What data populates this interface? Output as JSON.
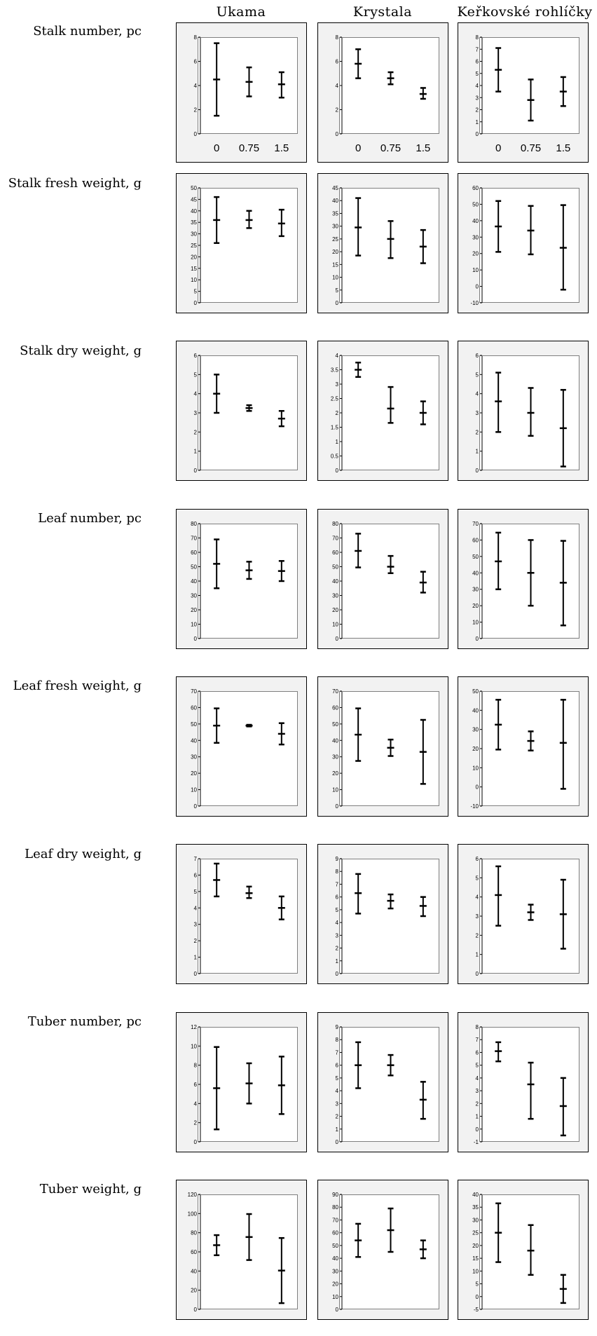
{
  "columns": [
    "Ukama",
    "Krystala",
    "Keřkovské rohlíčky"
  ],
  "rows": [
    "Stalk number, pc",
    "Stalk fresh weight, g",
    "Stalk dry weight, g",
    "Leaf number, pc",
    "Leaf fresh weight, g",
    "Leaf dry weight, g",
    "Tuber number, pc",
    "Tuber weight, g"
  ],
  "chart_data": [
    {
      "type": "errorbar",
      "row": 0,
      "col": 0,
      "ylim": [
        0,
        8
      ],
      "yticks": [
        0,
        2,
        4,
        6,
        8
      ],
      "categories": [
        "0",
        "0.75",
        "1.5"
      ],
      "mean": [
        4.5,
        4.3,
        4.1
      ],
      "low": [
        1.5,
        3.1,
        3.0
      ],
      "high": [
        7.5,
        5.5,
        5.1
      ]
    },
    {
      "type": "errorbar",
      "row": 0,
      "col": 1,
      "ylim": [
        0,
        8
      ],
      "yticks": [
        0,
        2,
        4,
        6,
        8
      ],
      "categories": [
        "0",
        "0.75",
        "1.5"
      ],
      "mean": [
        5.8,
        4.6,
        3.3
      ],
      "low": [
        4.6,
        4.1,
        2.9
      ],
      "high": [
        7.0,
        5.1,
        3.8
      ]
    },
    {
      "type": "errorbar",
      "row": 0,
      "col": 2,
      "ylim": [
        0,
        8
      ],
      "yticks": [
        0,
        1,
        2,
        3,
        4,
        5,
        6,
        7,
        8
      ],
      "categories": [
        "0",
        "0.75",
        "1.5"
      ],
      "mean": [
        5.3,
        2.8,
        3.5
      ],
      "low": [
        3.5,
        1.1,
        2.3
      ],
      "high": [
        7.1,
        4.5,
        4.7
      ]
    },
    {
      "type": "errorbar",
      "row": 1,
      "col": 0,
      "ylim": [
        0,
        50
      ],
      "yticks": [
        0,
        5,
        10,
        15,
        20,
        25,
        30,
        35,
        40,
        45,
        50
      ],
      "categories": [],
      "mean": [
        36,
        36,
        34.5
      ],
      "low": [
        26,
        32.5,
        29
      ],
      "high": [
        46,
        40,
        40.5
      ]
    },
    {
      "type": "errorbar",
      "row": 1,
      "col": 1,
      "ylim": [
        0,
        45
      ],
      "yticks": [
        0,
        5,
        10,
        15,
        20,
        25,
        30,
        35,
        40,
        45
      ],
      "categories": [],
      "mean": [
        29.5,
        25,
        22
      ],
      "low": [
        18.5,
        17.5,
        15.5
      ],
      "high": [
        41,
        32,
        28.5
      ]
    },
    {
      "type": "errorbar",
      "row": 1,
      "col": 2,
      "ylim": [
        -10,
        60
      ],
      "yticks": [
        -10,
        0,
        10,
        20,
        30,
        40,
        50,
        60
      ],
      "categories": [],
      "mean": [
        36.5,
        34,
        23.5
      ],
      "low": [
        21,
        19.5,
        -2
      ],
      "high": [
        52,
        49,
        49.5
      ]
    },
    {
      "type": "errorbar",
      "row": 2,
      "col": 0,
      "ylim": [
        0,
        6
      ],
      "yticks": [
        0,
        1,
        2,
        3,
        4,
        5,
        6
      ],
      "categories": [],
      "mean": [
        4.0,
        3.25,
        2.7
      ],
      "low": [
        3.0,
        3.1,
        2.3
      ],
      "high": [
        5.0,
        3.4,
        3.1
      ]
    },
    {
      "type": "errorbar",
      "row": 2,
      "col": 1,
      "ylim": [
        0,
        4
      ],
      "yticks": [
        0,
        0.5,
        1,
        1.5,
        2,
        2.5,
        3,
        3.5,
        4
      ],
      "categories": [],
      "mean": [
        3.5,
        2.15,
        2.0
      ],
      "low": [
        3.25,
        1.65,
        1.6
      ],
      "high": [
        3.75,
        2.9,
        2.4
      ]
    },
    {
      "type": "errorbar",
      "row": 2,
      "col": 2,
      "ylim": [
        0,
        6
      ],
      "yticks": [
        0,
        1,
        2,
        3,
        4,
        5,
        6
      ],
      "categories": [],
      "mean": [
        3.6,
        3.0,
        2.2
      ],
      "low": [
        2.0,
        1.8,
        0.2
      ],
      "high": [
        5.1,
        4.3,
        4.2
      ]
    },
    {
      "type": "errorbar",
      "row": 3,
      "col": 0,
      "ylim": [
        0,
        80
      ],
      "yticks": [
        0,
        10,
        20,
        30,
        40,
        50,
        60,
        70,
        80
      ],
      "categories": [],
      "mean": [
        52,
        47.5,
        47
      ],
      "low": [
        35,
        41.5,
        40
      ],
      "high": [
        69,
        53.5,
        54
      ]
    },
    {
      "type": "errorbar",
      "row": 3,
      "col": 1,
      "ylim": [
        0,
        80
      ],
      "yticks": [
        0,
        10,
        20,
        30,
        40,
        50,
        60,
        70,
        80
      ],
      "categories": [],
      "mean": [
        61,
        50,
        39
      ],
      "low": [
        49.5,
        45.5,
        32
      ],
      "high": [
        73,
        57.5,
        46.5
      ]
    },
    {
      "type": "errorbar",
      "row": 3,
      "col": 2,
      "ylim": [
        0,
        70
      ],
      "yticks": [
        0,
        10,
        20,
        30,
        40,
        50,
        60,
        70
      ],
      "categories": [],
      "mean": [
        47,
        40,
        34
      ],
      "low": [
        30,
        20,
        8
      ],
      "high": [
        64.5,
        60,
        59.5
      ]
    },
    {
      "type": "errorbar",
      "row": 4,
      "col": 0,
      "ylim": [
        0,
        70
      ],
      "yticks": [
        0,
        10,
        20,
        30,
        40,
        50,
        60,
        70
      ],
      "categories": [],
      "mean": [
        49,
        49,
        44
      ],
      "low": [
        38.5,
        48.5,
        37.5
      ],
      "high": [
        59.5,
        49.5,
        50.5
      ]
    },
    {
      "type": "errorbar",
      "row": 4,
      "col": 1,
      "ylim": [
        0,
        70
      ],
      "yticks": [
        0,
        10,
        20,
        30,
        40,
        50,
        60,
        70
      ],
      "categories": [],
      "mean": [
        43.5,
        35.5,
        33
      ],
      "low": [
        27.5,
        30.5,
        13.5
      ],
      "high": [
        59.5,
        40.5,
        52.5
      ]
    },
    {
      "type": "errorbar",
      "row": 4,
      "col": 2,
      "ylim": [
        -10,
        50
      ],
      "yticks": [
        -10,
        0,
        10,
        20,
        30,
        40,
        50
      ],
      "categories": [],
      "mean": [
        32.5,
        24,
        23
      ],
      "low": [
        19.5,
        19,
        -1
      ],
      "high": [
        45.5,
        29,
        45.5
      ]
    },
    {
      "type": "errorbar",
      "row": 5,
      "col": 0,
      "ylim": [
        0,
        7
      ],
      "yticks": [
        0,
        1,
        2,
        3,
        4,
        5,
        6,
        7
      ],
      "categories": [],
      "mean": [
        5.7,
        4.9,
        4.0
      ],
      "low": [
        4.7,
        4.6,
        3.3
      ],
      "high": [
        6.7,
        5.3,
        4.7
      ]
    },
    {
      "type": "errorbar",
      "row": 5,
      "col": 1,
      "ylim": [
        0,
        9
      ],
      "yticks": [
        0,
        1,
        2,
        3,
        4,
        5,
        6,
        7,
        8,
        9
      ],
      "categories": [],
      "mean": [
        6.3,
        5.7,
        5.3
      ],
      "low": [
        4.7,
        5.1,
        4.5
      ],
      "high": [
        7.8,
        6.2,
        6.0
      ]
    },
    {
      "type": "errorbar",
      "row": 5,
      "col": 2,
      "ylim": [
        0,
        6
      ],
      "yticks": [
        0,
        1,
        2,
        3,
        4,
        5,
        6
      ],
      "categories": [],
      "mean": [
        4.1,
        3.2,
        3.1
      ],
      "low": [
        2.5,
        2.8,
        1.3
      ],
      "high": [
        5.6,
        3.6,
        4.9
      ]
    },
    {
      "type": "errorbar",
      "row": 6,
      "col": 0,
      "ylim": [
        0,
        12
      ],
      "yticks": [
        0,
        2,
        4,
        6,
        8,
        10,
        12
      ],
      "categories": [],
      "mean": [
        5.6,
        6.1,
        5.9
      ],
      "low": [
        1.3,
        4.0,
        2.9
      ],
      "high": [
        9.9,
        8.2,
        8.9
      ]
    },
    {
      "type": "errorbar",
      "row": 6,
      "col": 1,
      "ylim": [
        0,
        9
      ],
      "yticks": [
        0,
        1,
        2,
        3,
        4,
        5,
        6,
        7,
        8,
        9
      ],
      "categories": [],
      "mean": [
        6.0,
        6.0,
        3.3
      ],
      "low": [
        4.2,
        5.2,
        1.8
      ],
      "high": [
        7.8,
        6.8,
        4.7
      ]
    },
    {
      "type": "errorbar",
      "row": 6,
      "col": 2,
      "ylim": [
        -1,
        8
      ],
      "yticks": [
        -1,
        0,
        1,
        2,
        3,
        4,
        5,
        6,
        7,
        8
      ],
      "categories": [],
      "mean": [
        6.1,
        3.5,
        1.8
      ],
      "low": [
        5.3,
        0.8,
        -0.5
      ],
      "high": [
        6.8,
        5.2,
        4.0
      ]
    },
    {
      "type": "errorbar",
      "row": 7,
      "col": 0,
      "ylim": [
        0,
        120
      ],
      "yticks": [
        0,
        20,
        40,
        60,
        80,
        100,
        120
      ],
      "categories": [],
      "mean": [
        67,
        75.5,
        40.5
      ],
      "low": [
        56.5,
        51.5,
        6.5
      ],
      "high": [
        77.5,
        99.5,
        74.5
      ]
    },
    {
      "type": "errorbar",
      "row": 7,
      "col": 1,
      "ylim": [
        0,
        90
      ],
      "yticks": [
        0,
        10,
        20,
        30,
        40,
        50,
        60,
        70,
        80,
        90
      ],
      "categories": [],
      "mean": [
        54,
        62,
        47
      ],
      "low": [
        41,
        45,
        40
      ],
      "high": [
        67,
        79,
        54
      ]
    },
    {
      "type": "errorbar",
      "row": 7,
      "col": 2,
      "ylim": [
        -5,
        40
      ],
      "yticks": [
        -5,
        0,
        5,
        10,
        15,
        20,
        25,
        30,
        35,
        40
      ],
      "categories": [],
      "mean": [
        25,
        18,
        3
      ],
      "low": [
        13.5,
        8.5,
        -2.5
      ],
      "high": [
        36.5,
        28,
        8.5
      ]
    }
  ]
}
